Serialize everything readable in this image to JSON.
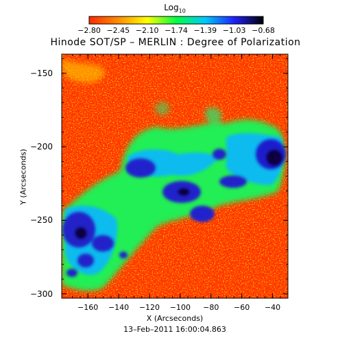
{
  "colorbar": {
    "label_base": "Log",
    "label_sub": "10",
    "ticks": [
      "−2.80",
      "−2.45",
      "−2.10",
      "−1.74",
      "−1.39",
      "−1.03",
      "−0.68"
    ],
    "colors": [
      "#ff2a00",
      "#ff8c00",
      "#ffff00",
      "#00ff40",
      "#00c8ff",
      "#2020ff",
      "#000000"
    ]
  },
  "plot": {
    "title": "Hinode SOT/SP – MERLIN : Degree of Polarization",
    "x_label": "X (Arcseconds)",
    "y_label": "Y (Arcseconds)",
    "timestamp": "13–Feb–2011 16:00:04.863",
    "x_ticks": [
      "−160",
      "−140",
      "−120",
      "−100",
      "−80",
      "−60",
      "−40"
    ],
    "y_ticks": [
      "−150",
      "−200",
      "−250",
      "−300"
    ],
    "x_range": [
      -177,
      -30
    ],
    "y_range": [
      -303,
      -137
    ]
  }
}
